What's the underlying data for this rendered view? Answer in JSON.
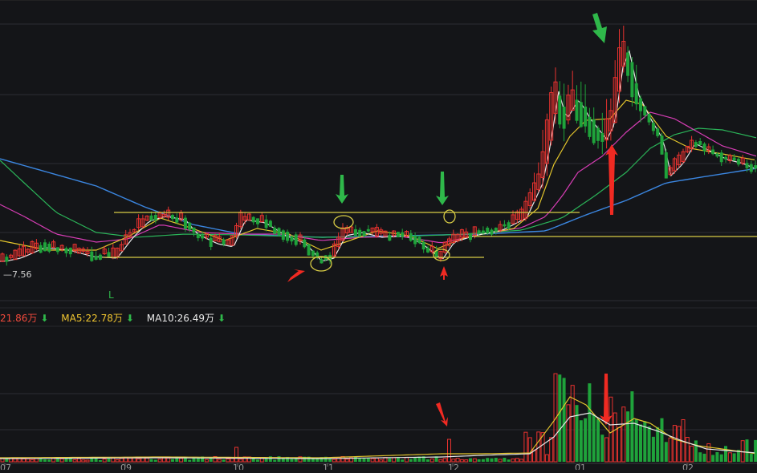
{
  "colors": {
    "background": "#141518",
    "grid": "#2c2d33",
    "up": "#e8322f",
    "down": "#1fa33b",
    "ma_white": "#e8e8e8",
    "ma_yellow": "#e3c52c",
    "ma_magenta": "#d63db4",
    "ma_green": "#2bb559",
    "ma_blue": "#3b86e0",
    "level_line": "#d8cc45",
    "annotation_red": "#f02a22",
    "annotation_green": "#2fb84a",
    "legend_red": "#f24a3c",
    "legend_yellow": "#f0c530",
    "legend_white": "#e8e8e8"
  },
  "price_panel": {
    "low_label": "7.56",
    "marker_label": "L"
  },
  "volume_legend": {
    "vol_text": "21.86万",
    "ma5_text": "MA5:22.78万",
    "ma10_text": "MA10:26.49万",
    "arrow": "⬇"
  },
  "x_axis": {
    "labels": [
      "07",
      "09",
      "10",
      "11",
      "12",
      "01",
      "02"
    ]
  },
  "chart_data": {
    "type": "candlestick",
    "title": "",
    "xlabel": "",
    "ylabel": "",
    "months": [
      "07",
      "09",
      "10",
      "11",
      "12",
      "01",
      "02"
    ],
    "annotations": [
      "yellow horizontal resistance line (consolidation top)",
      "yellow horizontal support line (consolidation bottom)",
      "green down arrows at consolidation top touches",
      "red up arrows at consolidation bottom touches",
      "red up arrow after breakout",
      "yellow ellipses around touch candles"
    ],
    "volume_legend": {
      "vol": "21.86万",
      "MA5": "22.78万",
      "MA10": "26.49万"
    },
    "price_low_label": "7.56",
    "grid": true
  }
}
